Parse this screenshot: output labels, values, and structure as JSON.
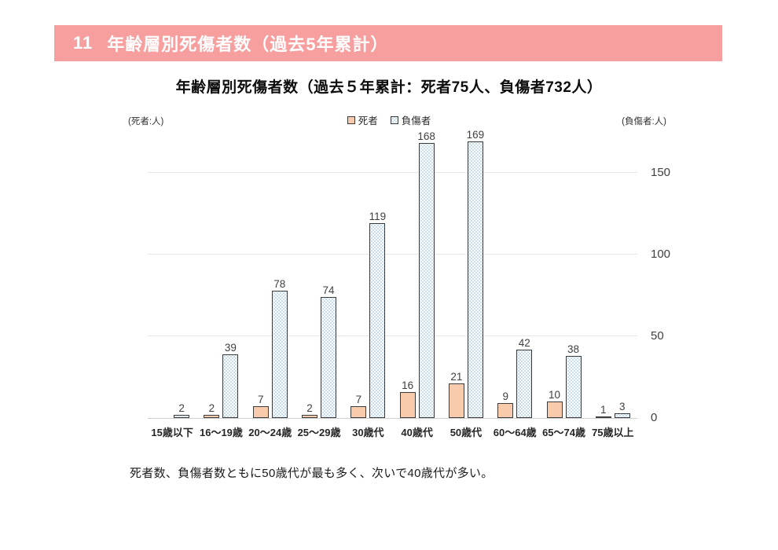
{
  "header": {
    "number": "11",
    "title": "年齢層別死傷者数（過去5年累計）",
    "bg_color": "#f79f9f",
    "text_color": "#ffffff"
  },
  "chart": {
    "title": "年齢層別死傷者数（過去５年累計：死者75人、負傷者732人）",
    "left_axis_unit": "(死者:人)",
    "right_axis_unit": "(負傷者:人)",
    "legend": [
      {
        "label": "死者"
      },
      {
        "label": "負傷者"
      }
    ]
  },
  "chart_data": {
    "type": "bar",
    "categories": [
      "15歳以下",
      "16〜19歳",
      "20〜24歳",
      "25〜29歳",
      "30歳代",
      "40歳代",
      "50歳代",
      "60〜64歳",
      "65〜74歳",
      "75歳以上"
    ],
    "series": [
      {
        "name": "死者",
        "style": "dead",
        "fill": "#f8cbad",
        "values": [
          0,
          2,
          7,
          2,
          7,
          16,
          21,
          9,
          10,
          1
        ]
      },
      {
        "name": "負傷者",
        "style": "injured",
        "fill": "#ffffff",
        "dot_color": "#b3d2ec",
        "values": [
          2,
          39,
          78,
          74,
          119,
          168,
          169,
          42,
          38,
          3
        ]
      }
    ],
    "y_ticks": [
      0,
      50,
      100,
      150
    ],
    "ylim": [
      0,
      173
    ],
    "grid": true,
    "legend_position": "top-center",
    "value_labels": true,
    "hide_zero_values": true,
    "totals": {
      "dead": 75,
      "injured": 732
    }
  },
  "colors": {
    "bar_border": "#3b3b3b",
    "gridline": "#e8e8e8",
    "baseline": "#cfcfcf"
  },
  "note": "死者数、負傷者数ともに50歳代が最も多く、次いで40歳代が多い。"
}
